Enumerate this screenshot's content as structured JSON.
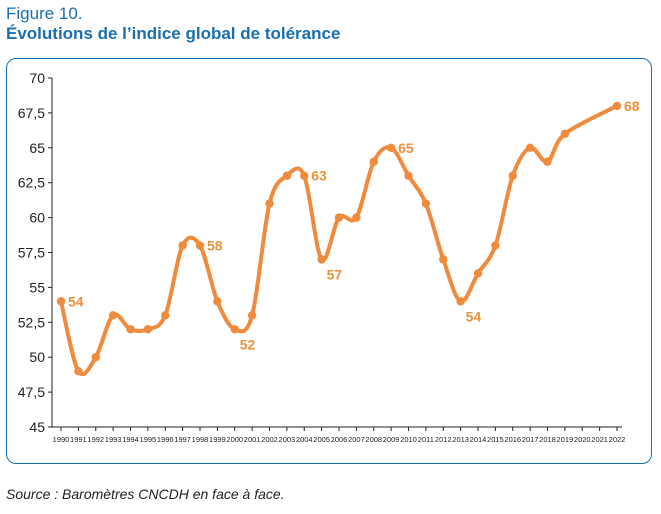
{
  "figure": {
    "label": "Figure 10.",
    "title": "Évolutions de l’indice global de tolérance",
    "source": "Source : Baromètres CNCDH en face à face."
  },
  "colors": {
    "line": "#f08a3c",
    "label": "#e8913a",
    "frame": "#1a6fb0",
    "axis": "#222222"
  },
  "chart_data": {
    "type": "line",
    "title": "",
    "xlabel": "",
    "ylabel": "",
    "grid": false,
    "ylim": [
      45,
      70
    ],
    "yticks": [
      "45",
      "47,5",
      "50",
      "52,5",
      "55",
      "57,5",
      "60",
      "62,5",
      "65",
      "67,5",
      "70"
    ],
    "categories": [
      "1990",
      "1991",
      "1992",
      "1993",
      "1994",
      "1995",
      "1996",
      "1997",
      "1998",
      "1999",
      "2000",
      "2001",
      "2002",
      "2003",
      "2004",
      "2005",
      "2006",
      "2007",
      "2008",
      "2009",
      "2010",
      "2011",
      "2012",
      "2013",
      "2014",
      "2015",
      "2016",
      "2017",
      "2018",
      "2019",
      "2020",
      "2021",
      "2022"
    ],
    "points": [
      {
        "x": 1990,
        "y": 54
      },
      {
        "x": 1991,
        "y": 49
      },
      {
        "x": 1992,
        "y": 50
      },
      {
        "x": 1993,
        "y": 53
      },
      {
        "x": 1994,
        "y": 52
      },
      {
        "x": 1995,
        "y": 52
      },
      {
        "x": 1996,
        "y": 53
      },
      {
        "x": 1997,
        "y": 58
      },
      {
        "x": 1998,
        "y": 58
      },
      {
        "x": 1999,
        "y": 54
      },
      {
        "x": 2000,
        "y": 52
      },
      {
        "x": 2001,
        "y": 53
      },
      {
        "x": 2002,
        "y": 61
      },
      {
        "x": 2003,
        "y": 63
      },
      {
        "x": 2004,
        "y": 63
      },
      {
        "x": 2005,
        "y": 57
      },
      {
        "x": 2006,
        "y": 60
      },
      {
        "x": 2007,
        "y": 60
      },
      {
        "x": 2008,
        "y": 64
      },
      {
        "x": 2009,
        "y": 65
      },
      {
        "x": 2010,
        "y": 63
      },
      {
        "x": 2011,
        "y": 61
      },
      {
        "x": 2012,
        "y": 57
      },
      {
        "x": 2013,
        "y": 54
      },
      {
        "x": 2014,
        "y": 56
      },
      {
        "x": 2015,
        "y": 58
      },
      {
        "x": 2016,
        "y": 63
      },
      {
        "x": 2017,
        "y": 65
      },
      {
        "x": 2018,
        "y": 64
      },
      {
        "x": 2019,
        "y": 66
      },
      {
        "x": 2022,
        "y": 68
      }
    ],
    "annotations": [
      {
        "x": 1990,
        "y": 54,
        "text": "54",
        "position": "right"
      },
      {
        "x": 1998,
        "y": 58,
        "text": "58",
        "position": "right"
      },
      {
        "x": 2000,
        "y": 52,
        "text": "52",
        "position": "below"
      },
      {
        "x": 2004,
        "y": 63,
        "text": "63",
        "position": "right"
      },
      {
        "x": 2005,
        "y": 57,
        "text": "57",
        "position": "below"
      },
      {
        "x": 2009,
        "y": 65,
        "text": "65",
        "position": "right"
      },
      {
        "x": 2013,
        "y": 54,
        "text": "54",
        "position": "below"
      },
      {
        "x": 2022,
        "y": 68,
        "text": "68",
        "position": "right"
      }
    ]
  }
}
